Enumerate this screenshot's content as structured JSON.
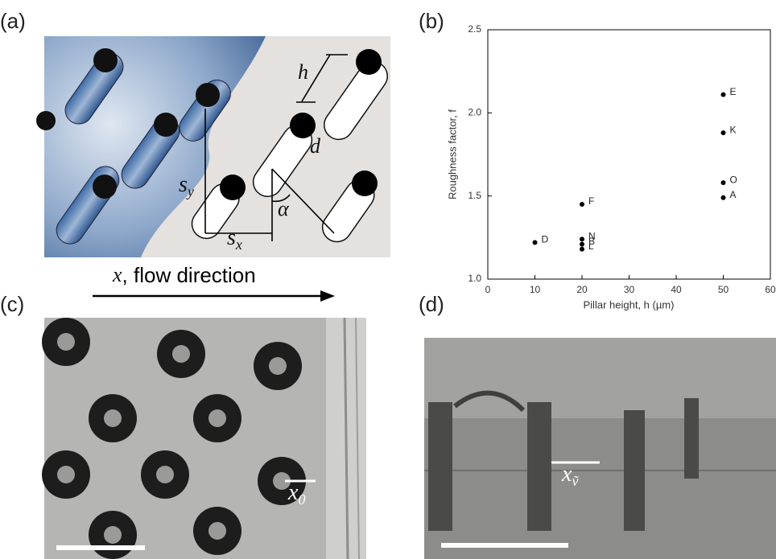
{
  "panel_labels": [
    "(a)",
    "(b)",
    "(c)",
    "(d)"
  ],
  "panel_a": {
    "h": "h",
    "d": "d",
    "sy": {
      "symbol": "s",
      "subscript": "y"
    },
    "sx": {
      "symbol": "s",
      "subscript": "x"
    },
    "alpha": "α",
    "flow_var": "x",
    "flow_text": ", flow direction"
  },
  "panel_c": {
    "label": {
      "symbol": "x",
      "subscript": "0"
    }
  },
  "panel_d": {
    "label": {
      "symbol": "x",
      "subscript": "ṽ"
    }
  },
  "chart_data": {
    "type": "scatter",
    "xlabel": "Pillar height, h    (µm)",
    "ylabel": "Roughness factor, f",
    "xlim": [
      0,
      60
    ],
    "xticks": [
      0,
      10,
      20,
      30,
      40,
      50,
      60
    ],
    "ylim": [
      1,
      2.5
    ],
    "yticks": [
      {
        "value": 1,
        "label": "1.0"
      },
      1.5,
      {
        "value": 2,
        "label": "2.0"
      },
      2.5
    ],
    "series": [
      {
        "color": "#000000",
        "x": [
          10,
          20,
          20,
          20,
          20,
          50,
          50,
          50,
          50
        ],
        "values": [
          1.22,
          1.45,
          1.24,
          1.21,
          1.18,
          2.11,
          1.88,
          1.58,
          1.49
        ],
        "labels": [
          "D",
          "F",
          "N",
          "B",
          "L",
          "E",
          "K",
          "O",
          "A"
        ]
      }
    ]
  }
}
